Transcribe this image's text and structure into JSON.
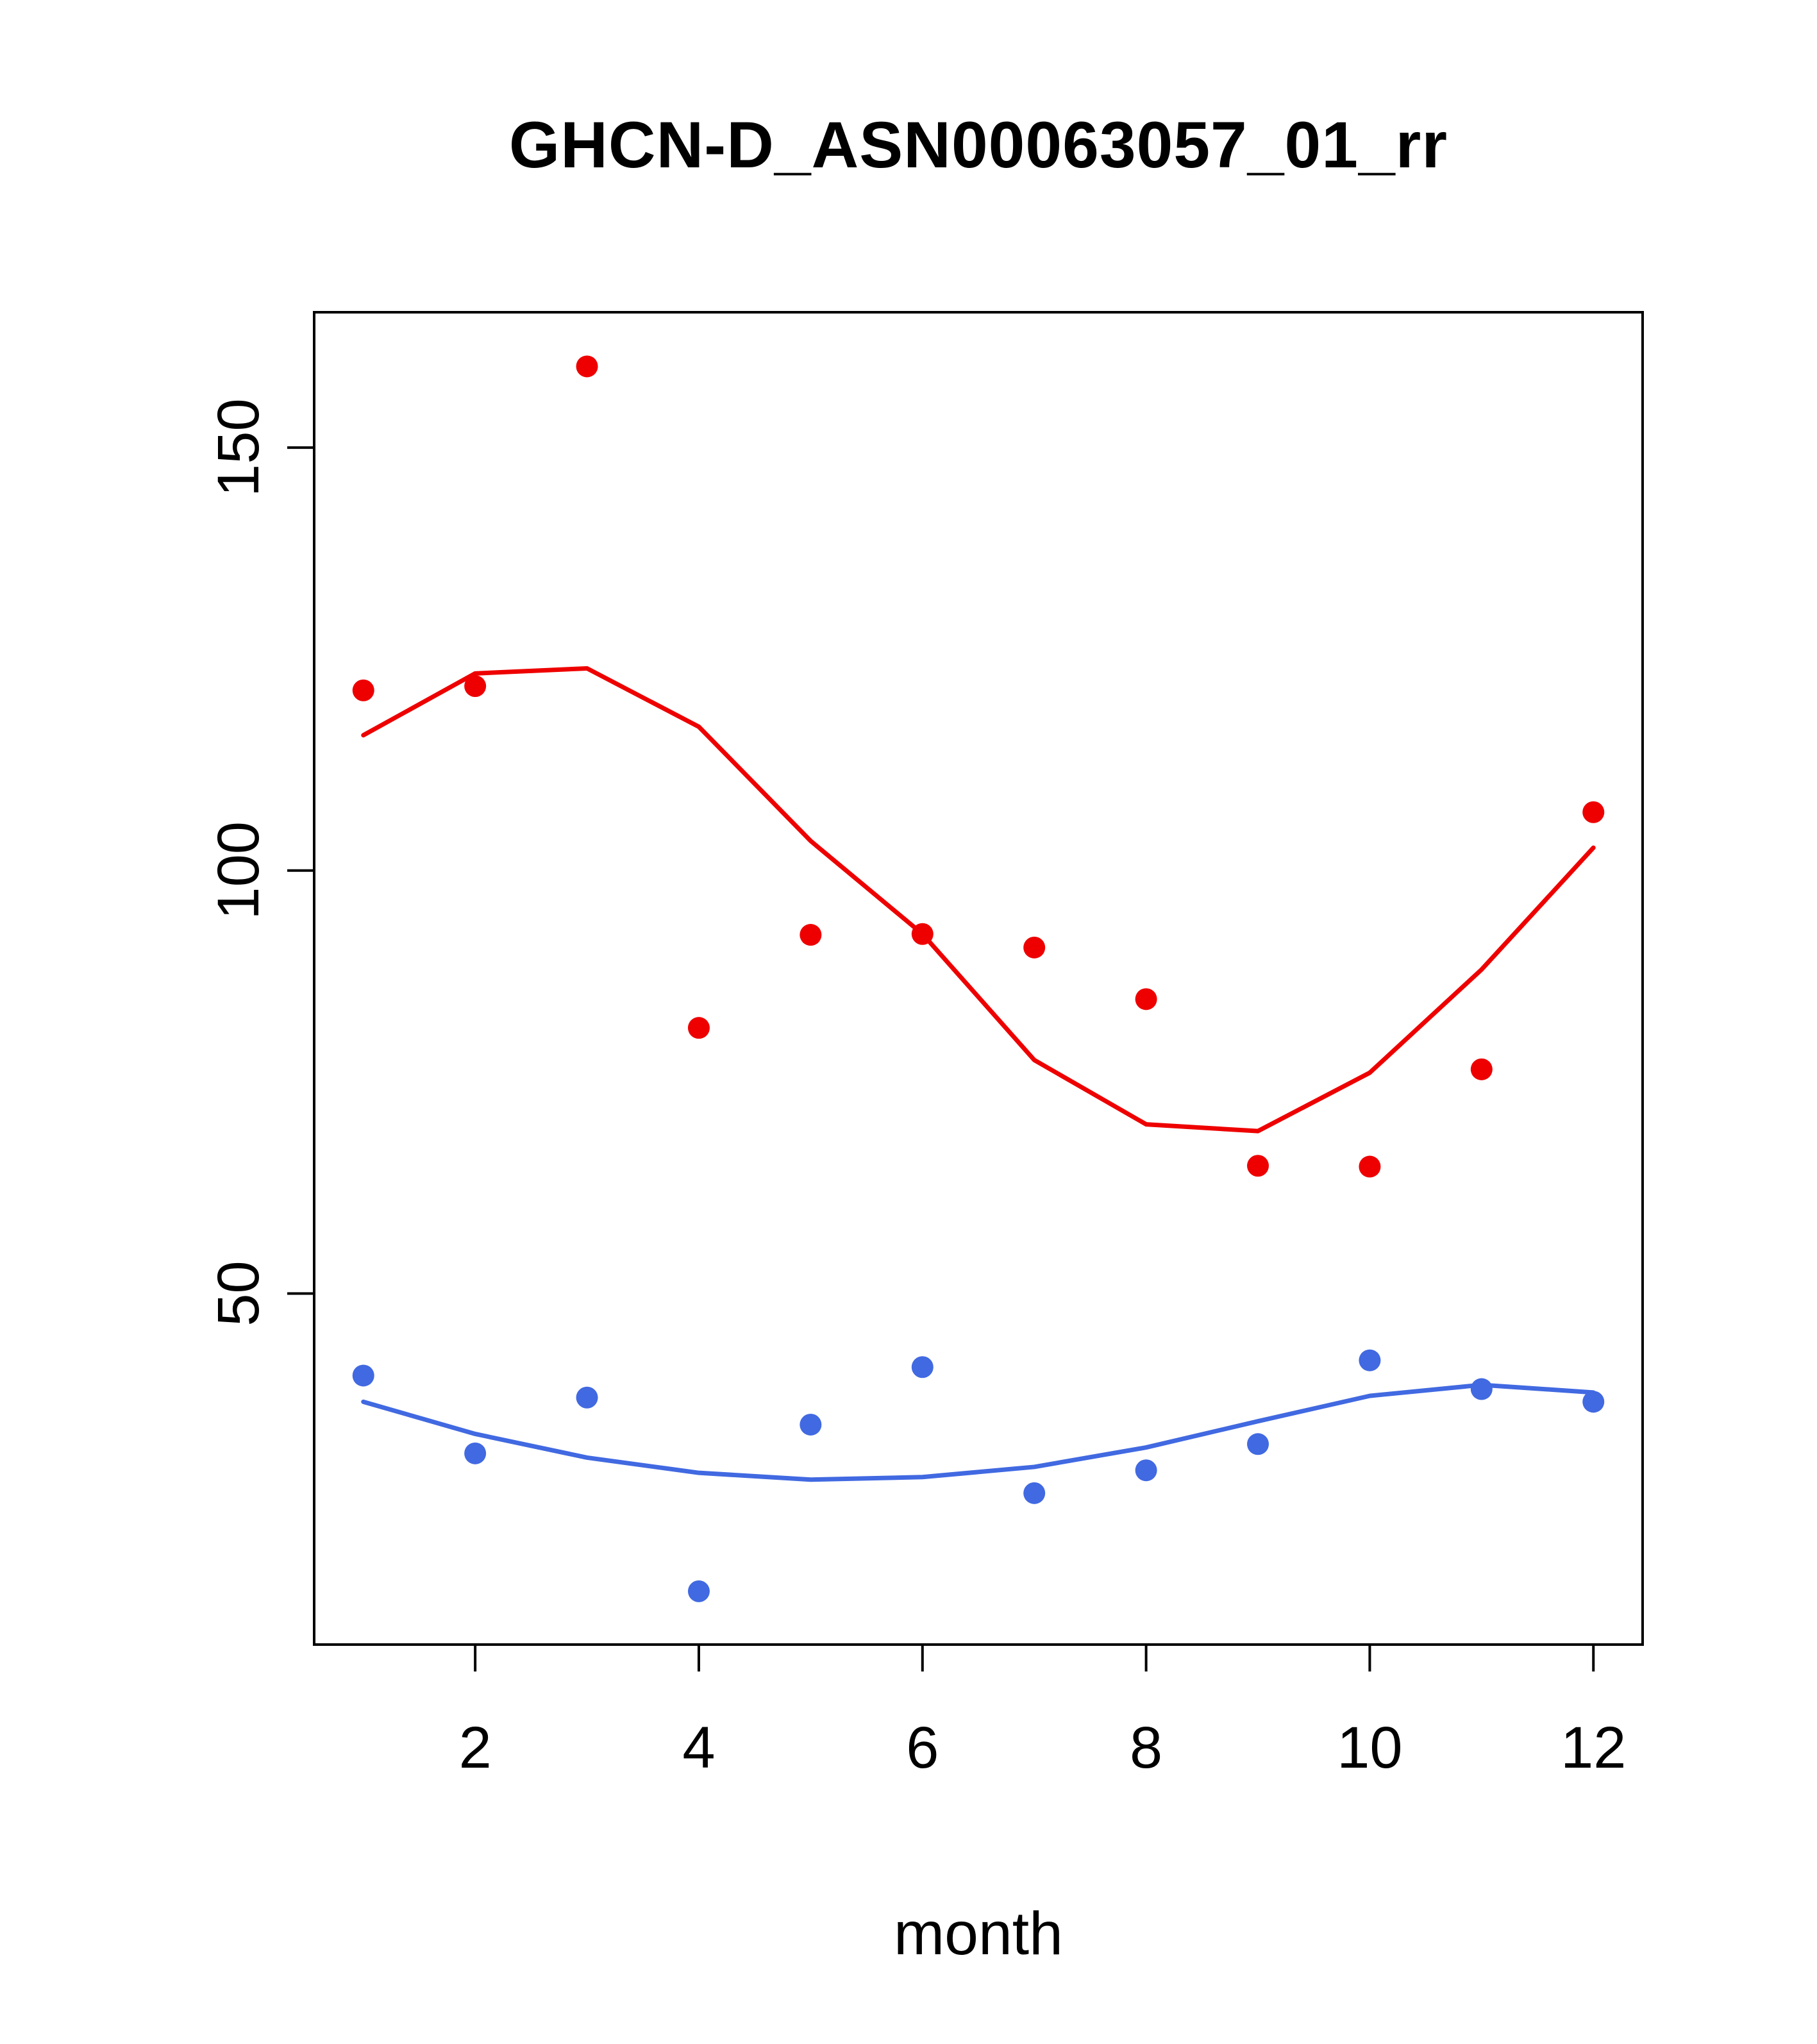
{
  "chart_data": {
    "type": "scatter",
    "title": "GHCN-D_ASN00063057_01_rr",
    "xlabel": "month",
    "ylabel": "",
    "x": [
      1,
      2,
      3,
      4,
      5,
      6,
      7,
      8,
      9,
      10,
      11,
      12
    ],
    "xlim": [
      0.56,
      12.44
    ],
    "ylim": [
      8.5,
      166
    ],
    "xticks": [
      2,
      4,
      6,
      8,
      10,
      12
    ],
    "yticks": [
      50,
      100,
      150
    ],
    "grid": false,
    "legend": "none",
    "colors": {
      "red": "#ee0000",
      "blue": "#4169e1",
      "axis": "#000000"
    },
    "series": [
      {
        "name": "red-points",
        "kind": "points",
        "color": "#ee0000",
        "values": [
          121.3,
          121.8,
          159.6,
          81.4,
          92.4,
          92.5,
          90.9,
          84.8,
          65.1,
          65.0,
          76.5,
          106.9
        ]
      },
      {
        "name": "red-smooth-line",
        "kind": "line",
        "color": "#ee0000",
        "values": [
          116.0,
          123.3,
          123.9,
          117.0,
          103.5,
          92.5,
          77.6,
          70.0,
          69.2,
          76.1,
          88.3,
          102.7
        ]
      },
      {
        "name": "blue-points",
        "kind": "points",
        "color": "#4169e1",
        "values": [
          40.3,
          31.1,
          37.7,
          14.8,
          34.5,
          41.3,
          26.4,
          29.1,
          32.2,
          42.1,
          38.7,
          37.2
        ]
      },
      {
        "name": "blue-smooth-line",
        "kind": "line",
        "color": "#4169e1",
        "values": [
          37.2,
          33.4,
          30.6,
          28.8,
          28.0,
          28.3,
          29.5,
          31.8,
          34.9,
          37.9,
          39.2,
          38.3
        ]
      }
    ]
  },
  "layout_text": {
    "note": ""
  }
}
